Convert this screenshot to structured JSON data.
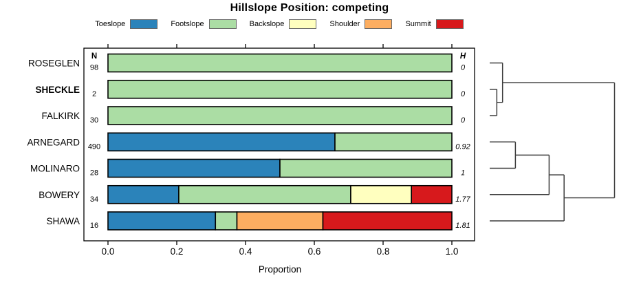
{
  "figure": {
    "title": "Hillslope Position: competing",
    "background_color": "#ffffff"
  },
  "chart_data": {
    "type": "bar",
    "subtype": "horizontal-stacked-proportion-with-dendrogram",
    "title": "Hillslope Position: competing",
    "xlabel": "Proportion",
    "ylabel": "",
    "xlim": [
      0,
      1
    ],
    "xticks": [
      "0.0",
      "0.2",
      "0.4",
      "0.6",
      "0.8",
      "1.0"
    ],
    "xtick_values": [
      0,
      0.2,
      0.4,
      0.6,
      0.8,
      1.0
    ],
    "grid": false,
    "legend_position": "top",
    "series_names": [
      "Toeslope",
      "Footslope",
      "Backslope",
      "Shoulder",
      "Summit"
    ],
    "colors": {
      "Toeslope": "#2B83BA",
      "Footslope": "#ABDDA4",
      "Backslope": "#FFFFBF",
      "Shoulder": "#FDAE61",
      "Summit": "#D7191C"
    },
    "n_column_header": "N",
    "h_column_header": "H",
    "rows": [
      {
        "name": "ROSEGLEN",
        "bold": false,
        "n": "98",
        "h": "0",
        "proportions": [
          0,
          1,
          0,
          0,
          0
        ]
      },
      {
        "name": "SHECKLE",
        "bold": true,
        "n": "2",
        "h": "0",
        "proportions": [
          0,
          1,
          0,
          0,
          0
        ]
      },
      {
        "name": "FALKIRK",
        "bold": false,
        "n": "30",
        "h": "0",
        "proportions": [
          0,
          1,
          0,
          0,
          0
        ]
      },
      {
        "name": "ARNEGARD",
        "bold": false,
        "n": "490",
        "h": "0.92",
        "proportions": [
          0.66,
          0.34,
          0,
          0,
          0
        ]
      },
      {
        "name": "MOLINARO",
        "bold": false,
        "n": "28",
        "h": "1",
        "proportions": [
          0.5,
          0.5,
          0,
          0,
          0
        ]
      },
      {
        "name": "BOWERY",
        "bold": false,
        "n": "34",
        "h": "1.77",
        "proportions": [
          0.2059,
          0.5,
          0.1765,
          0,
          0.1176
        ]
      },
      {
        "name": "SHAWA",
        "bold": false,
        "n": "16",
        "h": "1.81",
        "proportions": [
          0.3125,
          0.0625,
          0,
          0.25,
          0.375
        ]
      }
    ],
    "legend": {
      "entries": [
        "Toeslope",
        "Footslope",
        "Backslope",
        "Shoulder",
        "Summit"
      ]
    },
    "dendrogram": {
      "orientation": "leaves-left-root-right",
      "merges": [
        {
          "id": "m1",
          "children": [
            "SHECKLE",
            "FALKIRK"
          ],
          "height": 0.057
        },
        {
          "id": "m2",
          "children": [
            "ROSEGLEN",
            "m1"
          ],
          "height": 0.103
        },
        {
          "id": "m3",
          "children": [
            "ARNEGARD",
            "MOLINARO"
          ],
          "height": 0.206
        },
        {
          "id": "m4",
          "children": [
            "m3",
            "BOWERY"
          ],
          "height": 0.476
        },
        {
          "id": "m5",
          "children": [
            "m4",
            "SHAWA"
          ],
          "height": 0.596
        },
        {
          "id": "root",
          "children": [
            "m2",
            "m5"
          ],
          "height": 1.0
        }
      ]
    },
    "style_colors": {
      "bar_border": "#000000",
      "plot_box_border": "#000000",
      "dendrogram_line": "#3c3c3c",
      "legend_swatch_border": "#666666",
      "text": "#000000"
    }
  }
}
